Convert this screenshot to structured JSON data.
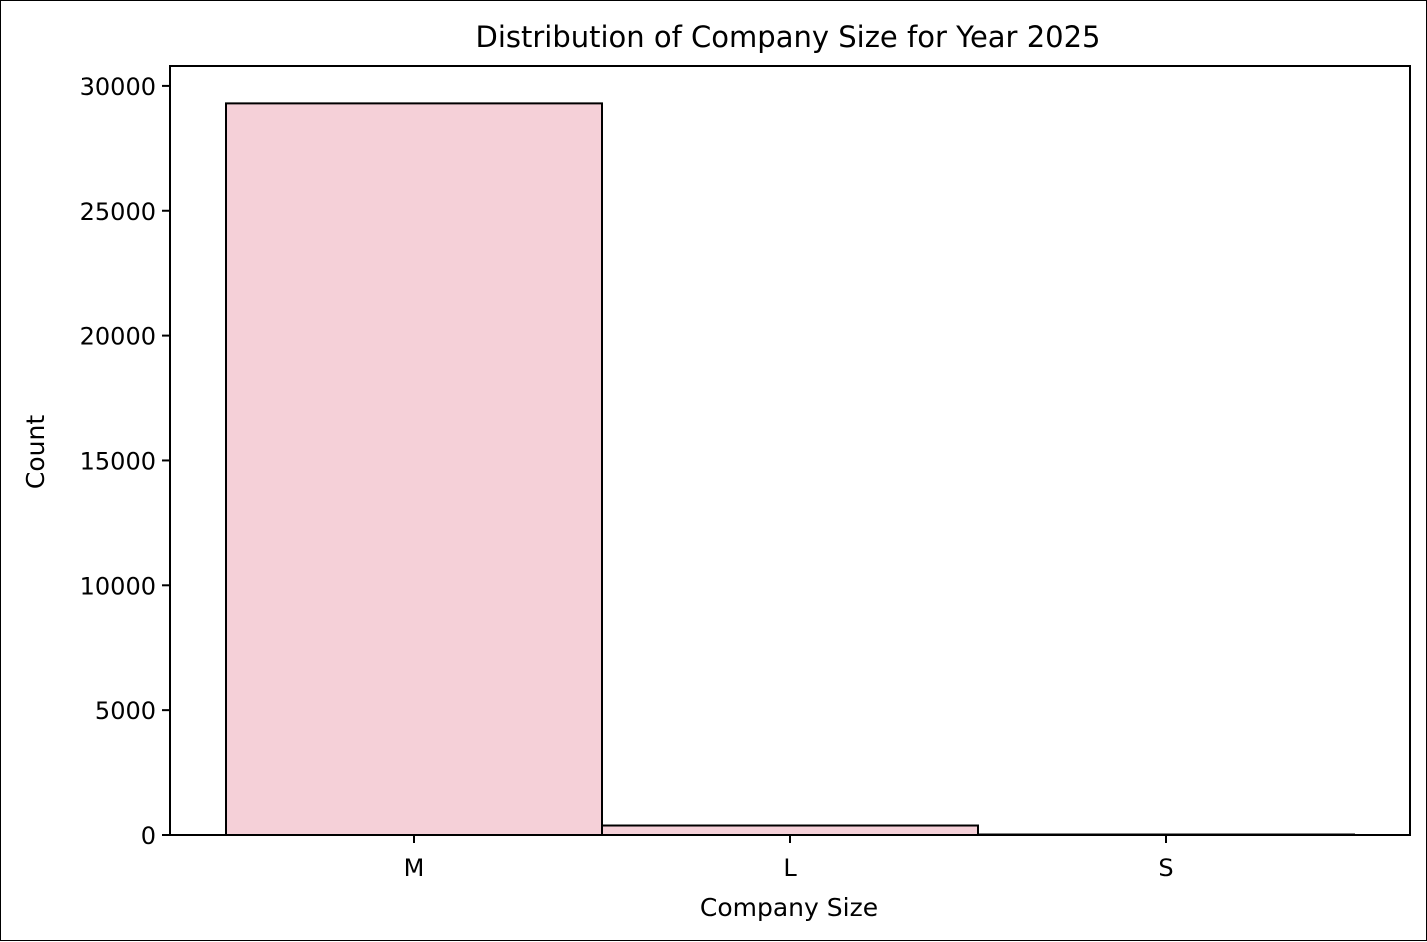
{
  "chart_data": {
    "type": "bar",
    "title": "Distribution of Company Size for Year 2025",
    "xlabel": "Company Size",
    "ylabel": "Count",
    "categories": [
      "M",
      "L",
      "S"
    ],
    "values": [
      29300,
      380,
      20
    ],
    "ylim": [
      0,
      30800
    ],
    "yticks": [
      0,
      5000,
      10000,
      15000,
      20000,
      25000,
      30000
    ],
    "grid": false,
    "legend": "none",
    "colors": {
      "bar_fill": "#f5d0d8",
      "bar_edge": "#000000",
      "axes": "#000000",
      "background": "#ffffff"
    }
  }
}
